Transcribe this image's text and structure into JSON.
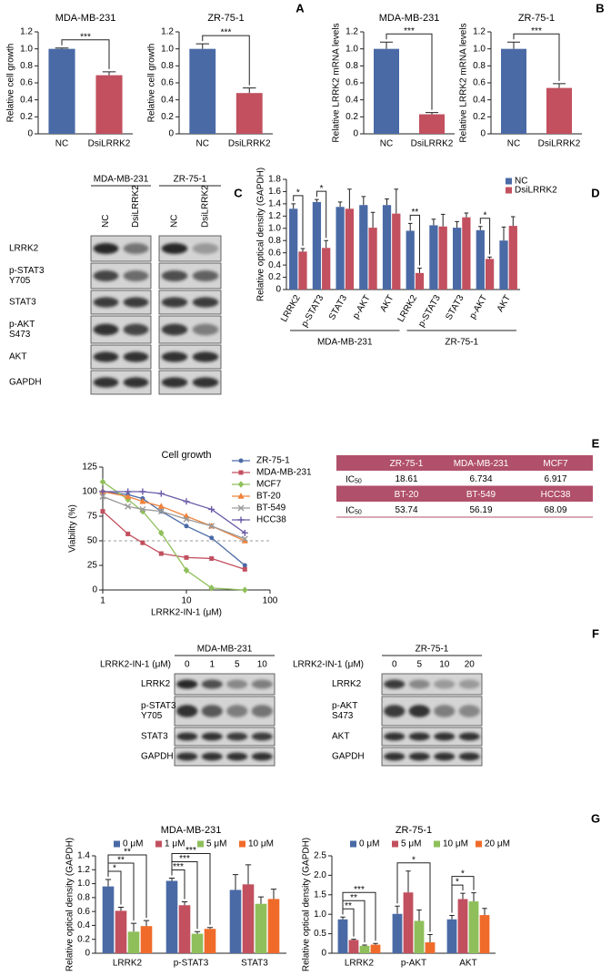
{
  "panel_labels": [
    "A",
    "B",
    "C",
    "D",
    "E",
    "F",
    "G"
  ],
  "chart_data": [
    {
      "type": "bar",
      "title": "MDA-MB-231",
      "y_label": "Relative cell growth",
      "categories": [
        "NC",
        "DsiLRRK2"
      ],
      "values": [
        1.0,
        0.69
      ],
      "errors": [
        0.01,
        0.04
      ],
      "colors": [
        "#4a6aa6",
        "#c2505f"
      ],
      "ylim": [
        0,
        1.2
      ],
      "yticks": [
        0,
        0.2,
        0.4,
        0.6,
        0.8,
        {
          "value": 1,
          "label": "1.0"
        },
        1.2
      ],
      "significance": [
        {
          "from": 0,
          "to": 1,
          "label": "***"
        }
      ]
    },
    {
      "type": "bar",
      "title": "ZR-75-1",
      "y_label": "Relative cell growth",
      "categories": [
        "NC",
        "DsiLRRK2"
      ],
      "values": [
        1.0,
        0.48
      ],
      "errors": [
        0.06,
        0.06
      ],
      "colors": [
        "#4a6aa6",
        "#c2505f"
      ],
      "ylim": [
        0,
        1.2
      ],
      "yticks": [
        0,
        0.2,
        0.4,
        0.6,
        0.8,
        {
          "value": 1,
          "label": "1.0"
        },
        1.2
      ],
      "significance": [
        {
          "from": 0,
          "to": 1,
          "label": "***"
        }
      ]
    },
    {
      "type": "bar",
      "title": "MDA-MB-231",
      "y_label": "Relative LRRK2 mRNA levels",
      "categories": [
        "NC",
        "DsiLRRK2"
      ],
      "values": [
        1.0,
        0.23
      ],
      "errors": [
        0.08,
        0.02
      ],
      "colors": [
        "#4a6aa6",
        "#c2505f"
      ],
      "ylim": [
        0,
        1.2
      ],
      "yticks": [
        0,
        0.2,
        0.4,
        0.6,
        0.8,
        {
          "value": 1,
          "label": "1.0"
        },
        1.2
      ],
      "significance": [
        {
          "from": 0,
          "to": 1,
          "label": "***"
        }
      ]
    },
    {
      "type": "bar",
      "title": "ZR-75-1",
      "y_label": "Relative LRRK2 mRNA levels",
      "categories": [
        "NC",
        "DsiLRRK2"
      ],
      "values": [
        1.0,
        0.54
      ],
      "errors": [
        0.08,
        0.05
      ],
      "colors": [
        "#4a6aa6",
        "#c2505f"
      ],
      "ylim": [
        0,
        1.2
      ],
      "yticks": [
        0,
        0.2,
        0.4,
        0.6,
        0.8,
        {
          "value": 1,
          "label": "1.0"
        },
        1.2
      ],
      "significance": [
        {
          "from": 0,
          "to": 1,
          "label": "***"
        }
      ]
    },
    {
      "type": "bar",
      "y_label": "Relative optical density (GAPDH)",
      "categories": [
        "LRRK2",
        "p-STAT3",
        "STAT3",
        "p-AKT",
        "AKT",
        "LRRK2",
        "p-STAT3",
        "STAT3",
        "p-AKT",
        "AKT"
      ],
      "groups": [
        {
          "label": "MDA-MB-231",
          "span": 5
        },
        {
          "label": "ZR-75-1",
          "span": 5
        }
      ],
      "series": [
        {
          "name": "NC",
          "color": "#4a6aa6",
          "values": [
            1.32,
            1.43,
            1.35,
            1.38,
            1.38,
            0.96,
            1.05,
            1.01,
            0.97,
            0.8
          ],
          "errors": [
            0.08,
            0.04,
            0.08,
            0.14,
            0.1,
            0.12,
            0.1,
            0.1,
            0.06,
            0.22
          ]
        },
        {
          "name": "DsiLRRK2",
          "color": "#c2505f",
          "values": [
            0.62,
            0.68,
            1.32,
            1.01,
            1.24,
            0.27,
            1.03,
            1.18,
            0.5,
            1.04
          ],
          "errors": [
            0.05,
            0.12,
            0.32,
            0.25,
            0.4,
            0.08,
            0.2,
            0.07,
            0.03,
            0.15
          ]
        }
      ],
      "ylim": [
        0,
        1.8
      ],
      "yticks": [
        0,
        0.2,
        0.4,
        0.6,
        0.8,
        {
          "value": 1,
          "label": "1.0"
        },
        1.2,
        1.4,
        1.6,
        1.8
      ],
      "legend_position": "top-right",
      "significance": [
        {
          "category": 0,
          "from": 0,
          "to": 1,
          "label": "*"
        },
        {
          "category": 1,
          "from": 0,
          "to": 1,
          "label": "*"
        },
        {
          "category": 5,
          "from": 0,
          "to": 1,
          "label": "**"
        },
        {
          "category": 8,
          "from": 0,
          "to": 1,
          "label": "*"
        }
      ]
    },
    {
      "type": "line",
      "title": "Cell growth",
      "x_label": "LRRK2-IN-1 (μM)",
      "y_label": "Viability (%)",
      "x": [
        1,
        2,
        3,
        5,
        10,
        20,
        50
      ],
      "x_scale": "log",
      "xlim": [
        1,
        100
      ],
      "xticks": [
        1,
        10,
        100
      ],
      "ylim": [
        0,
        125
      ],
      "yticks": [
        0,
        25,
        50,
        75,
        100,
        125
      ],
      "reference_line": 50,
      "legend_position": "right",
      "series": [
        {
          "name": "ZR-75-1",
          "color": "#4a6aa6",
          "marker": "circle",
          "values": [
            100,
            97,
            93,
            80,
            65,
            53,
            25
          ]
        },
        {
          "name": "MDA-MB-231",
          "color": "#c2505f",
          "marker": "square",
          "values": [
            80,
            57,
            48,
            37,
            33,
            32,
            21
          ]
        },
        {
          "name": "MCF7",
          "color": "#8fbf5a",
          "marker": "diamond",
          "values": [
            110,
            92,
            80,
            58,
            20,
            2,
            0
          ]
        },
        {
          "name": "BT-20",
          "color": "#f0823a",
          "marker": "triangle",
          "values": [
            100,
            95,
            90,
            85,
            75,
            65,
            50
          ]
        },
        {
          "name": "BT-549",
          "color": "#9a9a9a",
          "marker": "x",
          "values": [
            95,
            85,
            82,
            80,
            72,
            65,
            52
          ]
        },
        {
          "name": "HCC38",
          "color": "#6a5aa8",
          "marker": "plus",
          "values": [
            100,
            100,
            100,
            98,
            90,
            82,
            58
          ]
        }
      ]
    },
    {
      "type": "bar",
      "title": "MDA-MB-231",
      "y_label": "Relative optical density (GAPDH)",
      "categories": [
        "LRRK2",
        "p-STAT3",
        "STAT3"
      ],
      "series": [
        {
          "name": "0 μM",
          "color": "#4a6aa6",
          "values": [
            0.96,
            1.04,
            0.91
          ],
          "errors": [
            0.1,
            0.04,
            0.22
          ]
        },
        {
          "name": "1 μM",
          "color": "#c2505f",
          "values": [
            0.61,
            0.69,
            0.99
          ],
          "errors": [
            0.05,
            0.05,
            0.28
          ]
        },
        {
          "name": "5 μM",
          "color": "#8fbf5a",
          "values": [
            0.31,
            0.28,
            0.71
          ],
          "errors": [
            0.12,
            0.03,
            0.1
          ]
        },
        {
          "name": "10 μM",
          "color": "#f06b2a",
          "values": [
            0.39,
            0.35,
            0.78
          ],
          "errors": [
            0.08,
            0.02,
            0.14
          ]
        }
      ],
      "ylim": [
        0,
        1.4
      ],
      "yticks": [
        0,
        0.2,
        0.4,
        0.6,
        0.8,
        {
          "value": 1,
          "label": "1.0"
        },
        1.2,
        1.4
      ],
      "legend_position": "top",
      "significance": [
        {
          "category": 0,
          "from": 0,
          "to": 1,
          "label": "*"
        },
        {
          "category": 0,
          "from": 0,
          "to": 2,
          "label": "**"
        },
        {
          "category": 0,
          "from": 0,
          "to": 3,
          "label": "**"
        },
        {
          "category": 1,
          "from": 0,
          "to": 1,
          "label": "***"
        },
        {
          "category": 1,
          "from": 0,
          "to": 2,
          "label": "***"
        },
        {
          "category": 1,
          "from": 0,
          "to": 3,
          "label": "***"
        }
      ]
    },
    {
      "type": "bar",
      "title": "ZR-75-1",
      "y_label": "Relative optical density (GAPDH)",
      "categories": [
        "LRRK2",
        "p-AKT",
        "AKT"
      ],
      "series": [
        {
          "name": "0 μM",
          "color": "#4a6aa6",
          "values": [
            0.87,
            1.01,
            0.87
          ],
          "errors": [
            0.06,
            0.2,
            0.1
          ]
        },
        {
          "name": "5 μM",
          "color": "#c2505f",
          "values": [
            0.34,
            1.56,
            1.39
          ],
          "errors": [
            0.02,
            0.55,
            0.15
          ]
        },
        {
          "name": "10 μM",
          "color": "#8fbf5a",
          "values": [
            0.19,
            0.83,
            1.33
          ],
          "errors": [
            0.02,
            0.28,
            0.22
          ]
        },
        {
          "name": "20 μM",
          "color": "#f06b2a",
          "values": [
            0.22,
            0.28,
            0.98
          ],
          "errors": [
            0.03,
            0.2,
            0.17
          ]
        }
      ],
      "ylim": [
        0,
        2.5
      ],
      "yticks": [
        0,
        0.5,
        {
          "value": 1,
          "label": "1.0"
        },
        1.5,
        {
          "value": 2,
          "label": "2.0"
        },
        2.5
      ],
      "legend_position": "top",
      "significance": [
        {
          "category": 0,
          "from": 0,
          "to": 1,
          "label": "**"
        },
        {
          "category": 0,
          "from": 0,
          "to": 2,
          "label": "**"
        },
        {
          "category": 0,
          "from": 0,
          "to": 3,
          "label": "***"
        },
        {
          "category": 1,
          "from": 0,
          "to": 3,
          "label": "*"
        },
        {
          "category": 2,
          "from": 0,
          "to": 1,
          "label": "*"
        },
        {
          "category": 2,
          "from": 0,
          "to": 2,
          "label": "*"
        }
      ]
    }
  ],
  "ic50_table": {
    "label": {
      "main": "IC",
      "sub": "50"
    },
    "blocks": [
      {
        "cell_lines": [
          "ZR-75-1",
          "MDA-MB-231",
          "MCF7"
        ],
        "values": [
          18.61,
          6.734,
          6.917
        ]
      },
      {
        "cell_lines": [
          "BT-20",
          "BT-549",
          "HCC38"
        ],
        "values": [
          53.74,
          56.19,
          68.09
        ]
      }
    ]
  },
  "blots": [
    {
      "groups": [
        {
          "title": "MDA-MB-231",
          "lanes": [
            "NC",
            "DsiLRRK2"
          ]
        },
        {
          "title": "ZR-75-1",
          "lanes": [
            "NC",
            "DsiLRRK2"
          ]
        }
      ],
      "rows": [
        [
          "LRRK2"
        ],
        [
          "p-STAT3",
          "Y705"
        ],
        [
          "STAT3"
        ],
        [
          "p-AKT",
          "S473"
        ],
        [
          "AKT"
        ],
        [
          "GAPDH"
        ]
      ]
    },
    {
      "dose_label": "LRRK2-IN-1 (μM)",
      "groups": [
        {
          "title": "MDA-MB-231",
          "lanes": [
            "0",
            "1",
            "5",
            "10"
          ]
        }
      ],
      "rows": [
        [
          "LRRK2"
        ],
        [
          "p-STAT3",
          "Y705"
        ],
        [
          "STAT3"
        ],
        [
          "GAPDH"
        ]
      ]
    },
    {
      "dose_label": "LRRK2-IN-1 (μM)",
      "groups": [
        {
          "title": "ZR-75-1",
          "lanes": [
            "0",
            "5",
            "10",
            "20"
          ]
        }
      ],
      "rows": [
        [
          "LRRK2"
        ],
        [
          "p-AKT",
          "S473"
        ],
        [
          "AKT"
        ],
        [
          "GAPDH"
        ]
      ]
    }
  ]
}
